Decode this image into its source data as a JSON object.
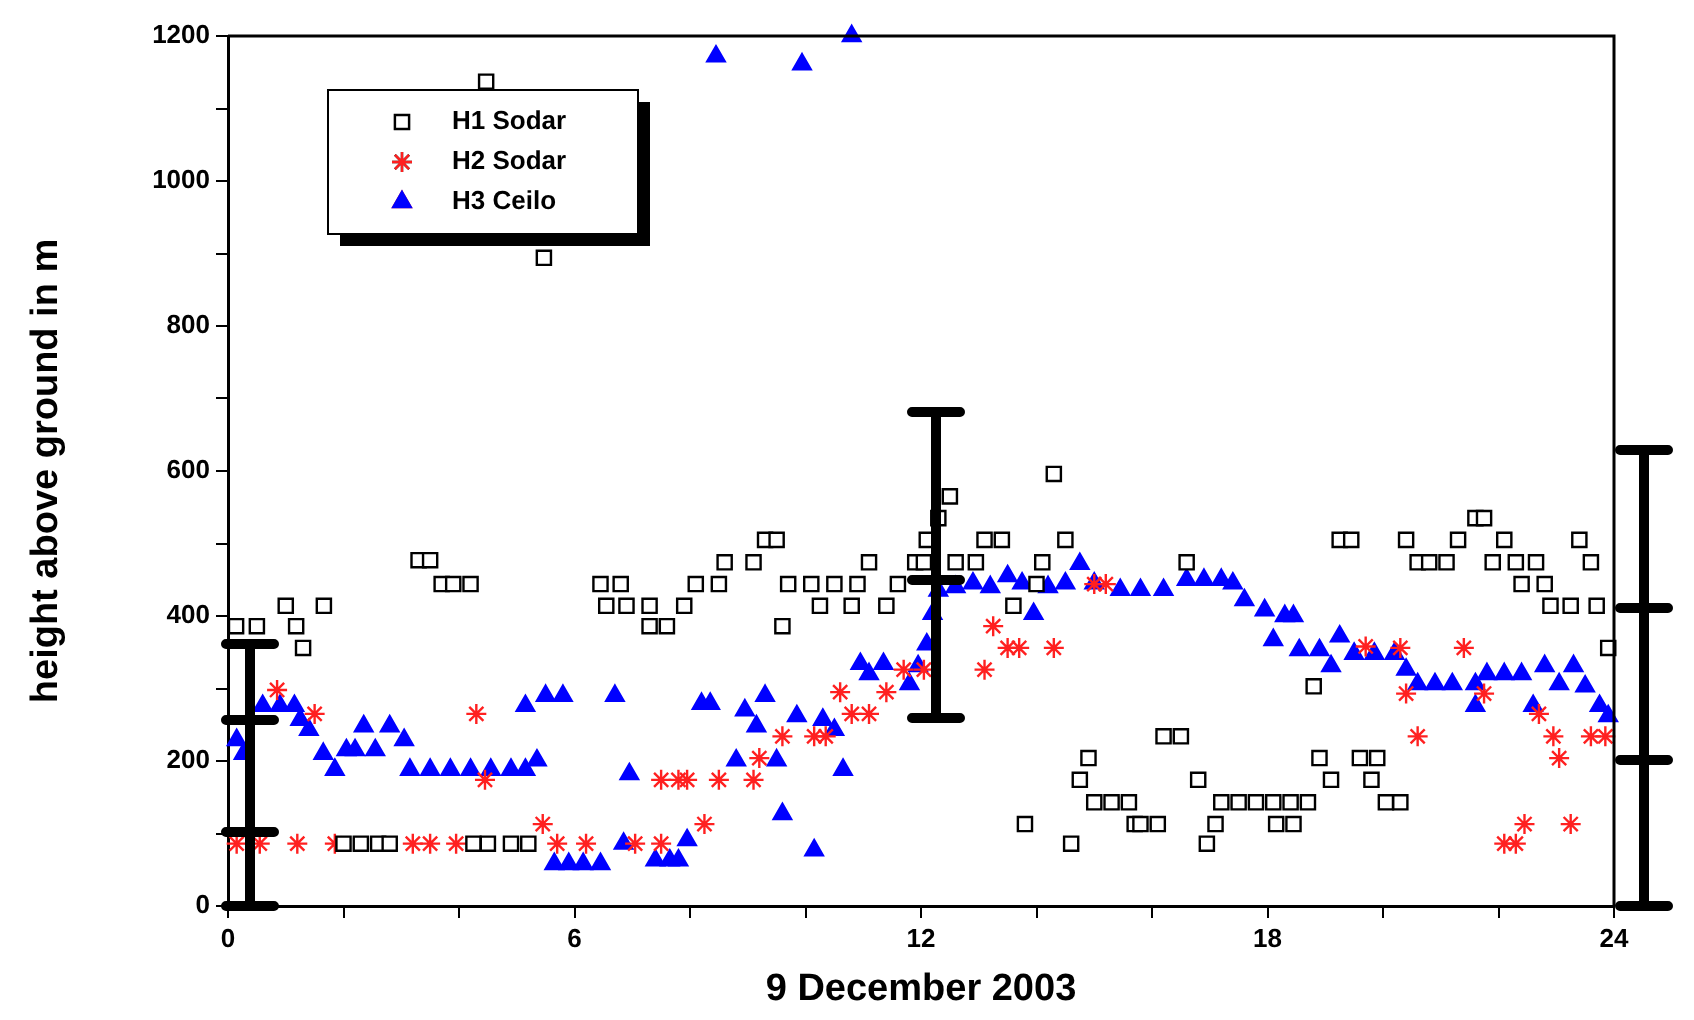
{
  "chart_data": {
    "type": "scatter",
    "xlabel": "9 December 2003",
    "ylabel": "height above ground in m",
    "xlim": [
      0,
      24
    ],
    "xticks": [
      0,
      {
        "value": 2,
        "label": null
      },
      {
        "value": 4,
        "label": null
      },
      6,
      {
        "value": 8,
        "label": null
      },
      {
        "value": 10,
        "label": null
      },
      12,
      {
        "value": 14,
        "label": null
      },
      {
        "value": 16,
        "label": null
      },
      18,
      {
        "value": 20,
        "label": null
      },
      {
        "value": 22,
        "label": null
      },
      24
    ],
    "ylim": [
      0,
      1200
    ],
    "yticks": [
      0,
      {
        "value": 100,
        "label": null
      },
      200,
      {
        "value": 300,
        "label": null
      },
      400,
      {
        "value": 500,
        "label": null
      },
      600,
      {
        "value": 700,
        "label": null
      },
      800,
      {
        "value": 900,
        "label": null
      },
      1000,
      {
        "value": 1100,
        "label": null
      },
      1200
    ],
    "grid": false,
    "legend": "top left",
    "series": [
      {
        "name": "H1 Sodar",
        "color": "#000000",
        "marker": "square",
        "x": [
          0.14,
          0.5,
          1.0,
          1.18,
          1.3,
          1.66,
          2.0,
          2.3,
          2.6,
          2.8,
          3.3,
          3.5,
          3.7,
          3.9,
          4.2,
          4.25,
          4.47,
          4.5,
          4.9,
          5.2,
          5.47,
          6.45,
          6.55,
          6.8,
          6.9,
          7.3,
          7.3,
          7.6,
          7.9,
          8.1,
          8.5,
          8.6,
          9.1,
          9.3,
          9.5,
          9.6,
          9.7,
          10.1,
          10.25,
          10.5,
          10.8,
          10.9,
          11.1,
          11.4,
          11.6,
          11.9,
          12.05,
          12.1,
          12.3,
          12.5,
          12.6,
          12.95,
          13.1,
          13.4,
          13.6,
          13.8,
          14.0,
          14.1,
          14.3,
          14.5,
          14.6,
          14.75,
          14.9,
          15.0,
          15.3,
          15.6,
          15.7,
          15.8,
          16.1,
          16.2,
          16.5,
          16.6,
          16.8,
          16.95,
          17.1,
          17.2,
          17.5,
          17.8,
          18.1,
          18.15,
          18.4,
          18.45,
          18.7,
          18.8,
          18.9,
          19.1,
          19.25,
          19.45,
          19.6,
          19.8,
          19.9,
          20.05,
          20.3,
          20.4,
          20.6,
          20.8,
          21.1,
          21.3,
          21.6,
          21.75,
          21.9,
          22.1,
          22.3,
          22.4,
          22.65,
          22.8,
          22.9,
          23.25,
          23.4,
          23.6,
          23.7,
          23.9
        ],
        "values": [
          386,
          386,
          414,
          386,
          356,
          414,
          86,
          86,
          86,
          86,
          477,
          477,
          444,
          444,
          444,
          86,
          1137,
          86,
          86,
          86,
          894,
          444,
          414,
          444,
          414,
          414,
          386,
          386,
          414,
          444,
          444,
          474,
          474,
          505,
          505,
          386,
          444,
          444,
          414,
          444,
          414,
          444,
          474,
          414,
          444,
          474,
          474,
          505,
          535,
          565,
          474,
          474,
          505,
          505,
          414,
          113,
          444,
          474,
          596,
          505,
          86,
          174,
          204,
          143,
          143,
          143,
          113,
          113,
          113,
          234,
          234,
          474,
          174,
          86,
          113,
          143,
          143,
          143,
          143,
          113,
          143,
          113,
          143,
          303,
          204,
          174,
          505,
          505,
          204,
          174,
          204,
          143,
          143,
          505,
          474,
          474,
          474,
          505,
          535,
          535,
          474,
          505,
          474,
          444,
          474,
          444,
          414,
          414,
          505,
          474,
          414,
          356
        ]
      },
      {
        "name": "H2 Sodar",
        "color": "#ff2020",
        "marker": "cross",
        "x": [
          0.15,
          0.55,
          0.85,
          1.2,
          1.5,
          1.85,
          3.2,
          3.5,
          3.95,
          4.3,
          4.45,
          5.45,
          5.7,
          6.2,
          7.05,
          7.5,
          7.5,
          7.8,
          7.95,
          8.25,
          8.5,
          9.1,
          9.2,
          9.6,
          10.15,
          10.35,
          10.6,
          10.8,
          11.1,
          11.4,
          11.7,
          12.05,
          13.1,
          13.25,
          13.5,
          13.7,
          14.3,
          15.0,
          15.2,
          19.7,
          20.3,
          20.4,
          20.6,
          21.4,
          21.75,
          22.1,
          22.3,
          22.45,
          22.7,
          22.95,
          23.05,
          23.25,
          23.6,
          23.85
        ],
        "values": [
          86,
          86,
          298,
          86,
          265,
          86,
          86,
          86,
          86,
          265,
          174,
          113,
          86,
          86,
          86,
          86,
          174,
          174,
          174,
          113,
          174,
          174,
          204,
          234,
          234,
          234,
          295,
          265,
          265,
          295,
          326,
          326,
          326,
          386,
          356,
          356,
          356,
          444,
          444,
          358,
          356,
          293,
          234,
          356,
          293,
          86,
          86,
          113,
          265,
          234,
          204,
          113,
          234,
          234
        ]
      },
      {
        "name": "H3 Ceilo",
        "color": "#0000ff",
        "marker": "triangle",
        "x": [
          0.15,
          0.27,
          0.6,
          0.9,
          1.15,
          1.25,
          1.4,
          1.65,
          1.85,
          2.05,
          2.2,
          2.35,
          2.55,
          2.8,
          3.05,
          3.15,
          3.5,
          3.85,
          4.2,
          4.55,
          4.9,
          5.15,
          5.15,
          5.35,
          5.5,
          5.65,
          5.8,
          5.9,
          6.15,
          6.45,
          6.7,
          6.85,
          6.95,
          7.4,
          7.65,
          7.8,
          7.95,
          8.2,
          8.35,
          8.45,
          8.8,
          8.95,
          9.15,
          9.3,
          9.5,
          9.6,
          9.85,
          9.94,
          10.15,
          10.3,
          10.5,
          10.65,
          10.8,
          10.95,
          11.1,
          11.35,
          11.8,
          11.95,
          12.1,
          12.2,
          12.3,
          12.6,
          12.9,
          13.2,
          13.5,
          13.75,
          13.95,
          14.2,
          14.5,
          14.75,
          15.0,
          15.45,
          15.8,
          16.2,
          16.6,
          16.9,
          17.2,
          17.4,
          17.6,
          17.95,
          18.1,
          18.3,
          18.45,
          18.55,
          18.9,
          19.1,
          19.25,
          19.5,
          19.85,
          20.2,
          20.4,
          20.6,
          20.9,
          21.2,
          21.6,
          21.6,
          21.8,
          22.1,
          22.4,
          22.6,
          22.8,
          23.05,
          23.3,
          23.5,
          23.75,
          23.9
        ],
        "values": [
          229,
          210,
          276,
          276,
          276,
          257,
          243,
          210,
          188,
          215,
          215,
          248,
          215,
          248,
          229,
          188,
          188,
          188,
          188,
          188,
          188,
          188,
          276,
          201,
          290,
          58,
          290,
          58,
          58,
          58,
          290,
          86,
          182,
          63,
          63,
          63,
          91,
          279,
          279,
          1172,
          201,
          270,
          248,
          290,
          201,
          127,
          262,
          1161,
          77,
          257,
          243,
          188,
          1200,
          334,
          320,
          334,
          306,
          331,
          361,
          403,
          435,
          440,
          445,
          440,
          455,
          445,
          403,
          440,
          445,
          472,
          445,
          436,
          436,
          436,
          450,
          450,
          450,
          445,
          422,
          408,
          367,
          400,
          400,
          353,
          353,
          331,
          372,
          348,
          348,
          348,
          326,
          306,
          306,
          306,
          306,
          276,
          320,
          320,
          320,
          276,
          331,
          306,
          331,
          303,
          276,
          262
        ]
      }
    ]
  }
}
